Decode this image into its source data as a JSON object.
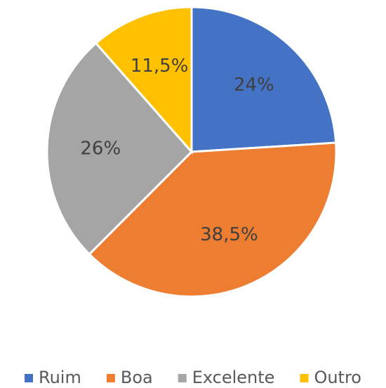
{
  "chart_data": {
    "type": "pie",
    "categories": [
      "Ruim",
      "Boa",
      "Excelente",
      "Outro"
    ],
    "values": [
      24,
      38.5,
      26,
      11.5
    ],
    "value_labels": [
      "24%",
      "38,5%",
      "26%",
      "11,5%"
    ],
    "colors": [
      "#4472c4",
      "#ed7d31",
      "#a5a5a5",
      "#ffc000"
    ],
    "legend": "bottom"
  }
}
